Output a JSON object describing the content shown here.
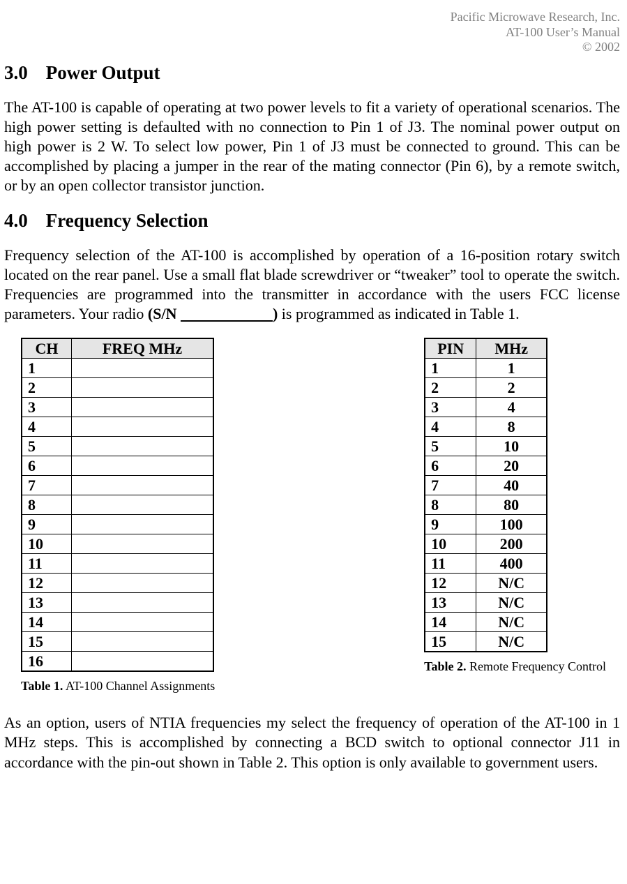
{
  "header": {
    "line1": "Pacific Microwave Research, Inc.",
    "line2": "AT-100 User’s Manual",
    "line3": "© 2002"
  },
  "section3": {
    "num": "3.0",
    "title": "Power Output",
    "para": "The AT-100 is capable of operating at two power levels to fit a variety of operational scenarios.  The high power setting is defaulted with no connection to Pin 1 of J3.  The nominal power output on high power is 2 W.  To select low power, Pin 1 of J3 must be connected to ground.  This can be accomplished by placing a jumper in the rear of the mating connector (Pin 6), by a remote switch, or by an open collector transistor junction."
  },
  "section4": {
    "num": "4.0",
    "title": "Frequency Selection",
    "para_before_sn": "Frequency selection of the AT-100 is accomplished by operation of a 16-position rotary switch located on the rear panel.  Use a small flat blade screwdriver or “tweaker” tool to operate the switch.  Frequencies are programmed into the transmitter in accordance with the users FCC license parameters.  Your radio ",
    "sn_label": "(S/N ",
    "sn_blank": "                        ",
    "sn_close": ")",
    "para_after_sn": " is programmed as indicated in Table 1."
  },
  "table1": {
    "header_ch": "CH",
    "header_freq": "FREQ MHz",
    "rows": [
      {
        "ch": "1",
        "freq": ""
      },
      {
        "ch": "2",
        "freq": ""
      },
      {
        "ch": "3",
        "freq": ""
      },
      {
        "ch": "4",
        "freq": ""
      },
      {
        "ch": "5",
        "freq": ""
      },
      {
        "ch": "6",
        "freq": ""
      },
      {
        "ch": "7",
        "freq": ""
      },
      {
        "ch": "8",
        "freq": ""
      },
      {
        "ch": "9",
        "freq": ""
      },
      {
        "ch": "10",
        "freq": ""
      },
      {
        "ch": "11",
        "freq": ""
      },
      {
        "ch": "12",
        "freq": ""
      },
      {
        "ch": "13",
        "freq": ""
      },
      {
        "ch": "14",
        "freq": ""
      },
      {
        "ch": "15",
        "freq": ""
      },
      {
        "ch": "16",
        "freq": ""
      }
    ],
    "caption_bold": "Table 1.",
    "caption_rest": " AT-100 Channel Assignments"
  },
  "table2": {
    "header_pin": "PIN",
    "header_mhz": "MHz",
    "rows": [
      {
        "pin": "1",
        "mhz": "1"
      },
      {
        "pin": "2",
        "mhz": "2"
      },
      {
        "pin": "3",
        "mhz": "4"
      },
      {
        "pin": "4",
        "mhz": "8"
      },
      {
        "pin": "5",
        "mhz": "10"
      },
      {
        "pin": "6",
        "mhz": "20"
      },
      {
        "pin": "7",
        "mhz": "40"
      },
      {
        "pin": "8",
        "mhz": "80"
      },
      {
        "pin": "9",
        "mhz": "100"
      },
      {
        "pin": "10",
        "mhz": "200"
      },
      {
        "pin": "11",
        "mhz": "400"
      },
      {
        "pin": "12",
        "mhz": "N/C"
      },
      {
        "pin": "13",
        "mhz": "N/C"
      },
      {
        "pin": "14",
        "mhz": "N/C"
      },
      {
        "pin": "15",
        "mhz": "N/C"
      }
    ],
    "caption_bold": "Table 2.",
    "caption_rest": " Remote Frequency Control"
  },
  "closing_para": "As an option, users of NTIA frequencies my select the frequency of operation of the AT-100 in 1 MHz steps.  This is accomplished by connecting a BCD switch to optional connector J11 in accordance with the pin-out shown in Table 2.  This option is only available to government users."
}
